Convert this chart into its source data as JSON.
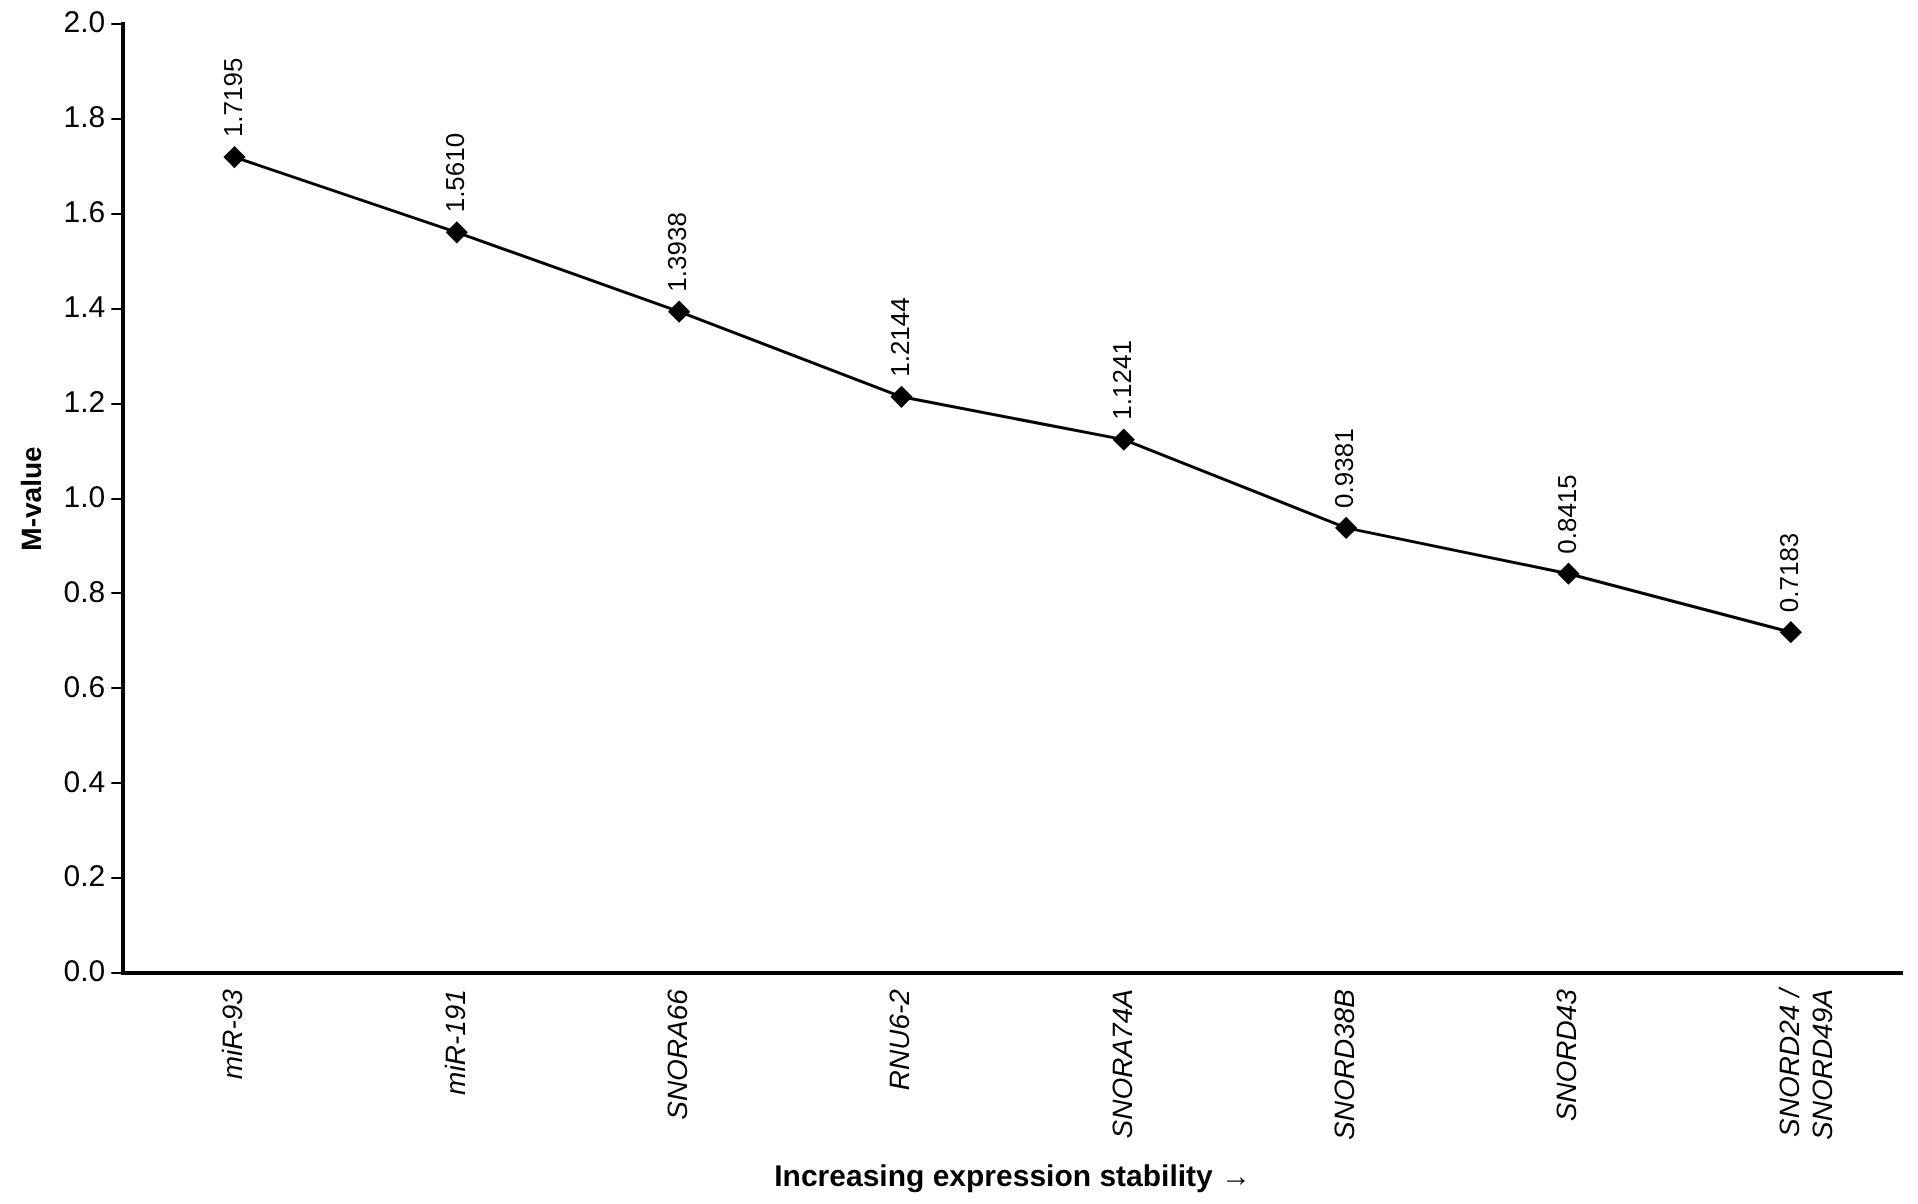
{
  "chart_data": {
    "type": "line",
    "xlabel": "Increasing expression stability →",
    "ylabel": "M-value",
    "categories": [
      "miR-93",
      "miR-191",
      "SNORA66",
      "RNU6-2",
      "SNORA74A",
      "SNORD38B",
      "SNORD43",
      "SNORD24 / SNORD49A"
    ],
    "series": [
      {
        "color": "#000000",
        "values": [
          1.7195,
          1.561,
          1.3938,
          1.2144,
          1.1241,
          0.9381,
          0.8415,
          0.7183
        ],
        "value_labels": [
          "1.7195",
          "1.5610",
          "1.3938",
          "1.2144",
          "1.1241",
          "0.9381",
          "0.8415",
          "0.7183"
        ]
      }
    ],
    "ylim": [
      0,
      2
    ],
    "yticks": [
      {
        "value": 0,
        "label": "0.0"
      },
      {
        "value": 0.2,
        "label": "0.2"
      },
      {
        "value": 0.4,
        "label": "0.4"
      },
      {
        "value": 0.6,
        "label": "0.6"
      },
      {
        "value": 0.8,
        "label": "0.8"
      },
      {
        "value": 1,
        "label": "1.0"
      },
      {
        "value": 1.2,
        "label": "1.2"
      },
      {
        "value": 1.4,
        "label": "1.4"
      },
      {
        "value": 1.6,
        "label": "1.6"
      },
      {
        "value": 1.8,
        "label": "1.8"
      },
      {
        "value": 2,
        "label": "2.0"
      }
    ],
    "grid": false,
    "legend": false,
    "marker": "diamond",
    "line_style": "solid"
  }
}
